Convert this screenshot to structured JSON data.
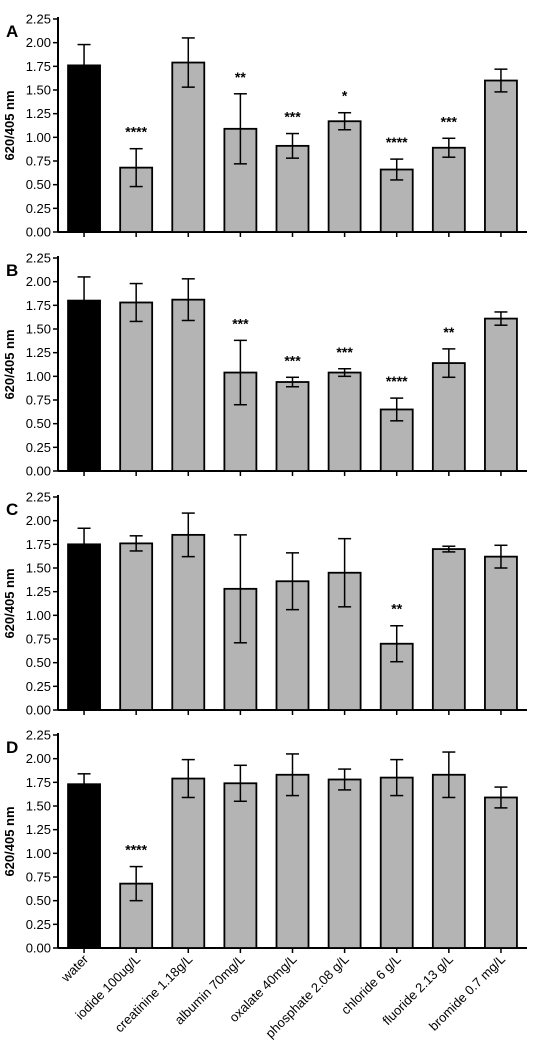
{
  "chart_data": {
    "type": "bar",
    "ylabel": "620/405 nm",
    "ylim": [
      0,
      2.25
    ],
    "yticks": [
      "0.00",
      "0.25",
      "0.50",
      "0.75",
      "1.00",
      "1.25",
      "1.50",
      "1.75",
      "2.00",
      "2.25"
    ],
    "categories": [
      "water",
      "iodide 100ug/L",
      "creatinine 1.18g/L",
      "albumin 70mg/L",
      "oxalate 40mg/L",
      "phosphate 2.08 g/L",
      "chloride 6 g/L",
      "fluoride 2.13 g/L",
      "bromide 0.7 mg/L"
    ],
    "colors": {
      "control": "#000000",
      "treatment": "#b4b4b4",
      "axis": "#000000"
    },
    "grid": false,
    "panels": [
      {
        "label": "A",
        "values": [
          1.76,
          0.68,
          1.79,
          1.09,
          0.91,
          1.17,
          0.66,
          0.89,
          1.6
        ],
        "errors": [
          0.22,
          0.2,
          0.26,
          0.37,
          0.13,
          0.09,
          0.11,
          0.1,
          0.12
        ],
        "significance": [
          "",
          "****",
          "",
          "**",
          "***",
          "*",
          "****",
          "***",
          ""
        ]
      },
      {
        "label": "B",
        "values": [
          1.8,
          1.78,
          1.81,
          1.04,
          0.94,
          1.04,
          0.65,
          1.14,
          1.61
        ],
        "errors": [
          0.25,
          0.2,
          0.22,
          0.34,
          0.05,
          0.04,
          0.12,
          0.15,
          0.07
        ],
        "significance": [
          "",
          "",
          "",
          "***",
          "***",
          "***",
          "****",
          "**",
          ""
        ]
      },
      {
        "label": "C",
        "values": [
          1.75,
          1.76,
          1.85,
          1.28,
          1.36,
          1.45,
          0.7,
          1.7,
          1.62
        ],
        "errors": [
          0.17,
          0.08,
          0.23,
          0.57,
          0.3,
          0.36,
          0.19,
          0.03,
          0.12
        ],
        "significance": [
          "",
          "",
          "",
          "",
          "",
          "",
          "**",
          "",
          ""
        ]
      },
      {
        "label": "D",
        "values": [
          1.73,
          0.68,
          1.79,
          1.74,
          1.83,
          1.78,
          1.8,
          1.83,
          1.59
        ],
        "errors": [
          0.11,
          0.18,
          0.2,
          0.19,
          0.22,
          0.11,
          0.19,
          0.24,
          0.11
        ],
        "significance": [
          "",
          "****",
          "",
          "",
          "",
          "",
          "",
          "",
          ""
        ]
      }
    ]
  }
}
